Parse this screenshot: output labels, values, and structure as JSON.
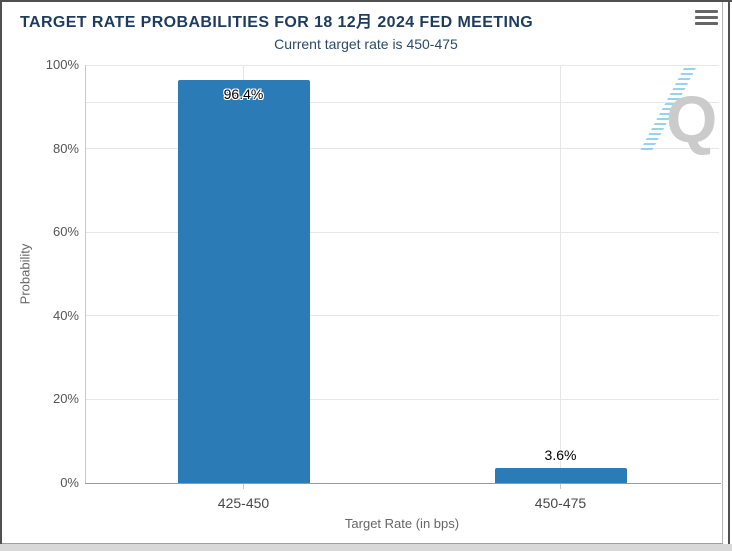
{
  "header": {
    "title": "TARGET RATE PROBABILITIES FOR 18 12月 2024 FED MEETING",
    "menu_icon": "hamburger-menu-icon"
  },
  "subtitle": "Current target rate is 450-475",
  "watermark": {
    "letter": "Q"
  },
  "chart_data": {
    "type": "bar",
    "title": "TARGET RATE PROBABILITIES FOR 18 12月 2024 FED MEETING",
    "subtitle": "Current target rate is 450-475",
    "categories": [
      "425-450",
      "450-475"
    ],
    "values": [
      96.4,
      3.6
    ],
    "value_labels": [
      "96.4%",
      "3.6%"
    ],
    "xlabel": "Target Rate (in bps)",
    "ylabel": "Probability",
    "ylim": [
      0,
      100
    ],
    "yticks": [
      0,
      20,
      40,
      60,
      80,
      100
    ],
    "ytick_labels": [
      "0%",
      "20%",
      "40%",
      "60%",
      "80%",
      "100%"
    ],
    "grid": true,
    "vertical_gridlines_at_category_centers": true,
    "extra_gridline_value": 91,
    "legend_position": "none",
    "bar_color": "#2b7cb6"
  },
  "colors": {
    "title": "#1e3c5f",
    "subtitle": "#2b4a68",
    "bar": "#2b7cb6",
    "gridline": "#e6e6e6",
    "x_axis_line": "#999999",
    "y_axis_line": "#c9c9c9",
    "tick_label": "#555555",
    "axis_title": "#666666",
    "menu_icon": "#666666",
    "watermark_q": "#cbcbcb",
    "watermark_stripe": "#7dc6eb",
    "frame_border": "#505050",
    "card_border": "#a9a9a9",
    "bottom_strip": "#d8d8d8"
  }
}
